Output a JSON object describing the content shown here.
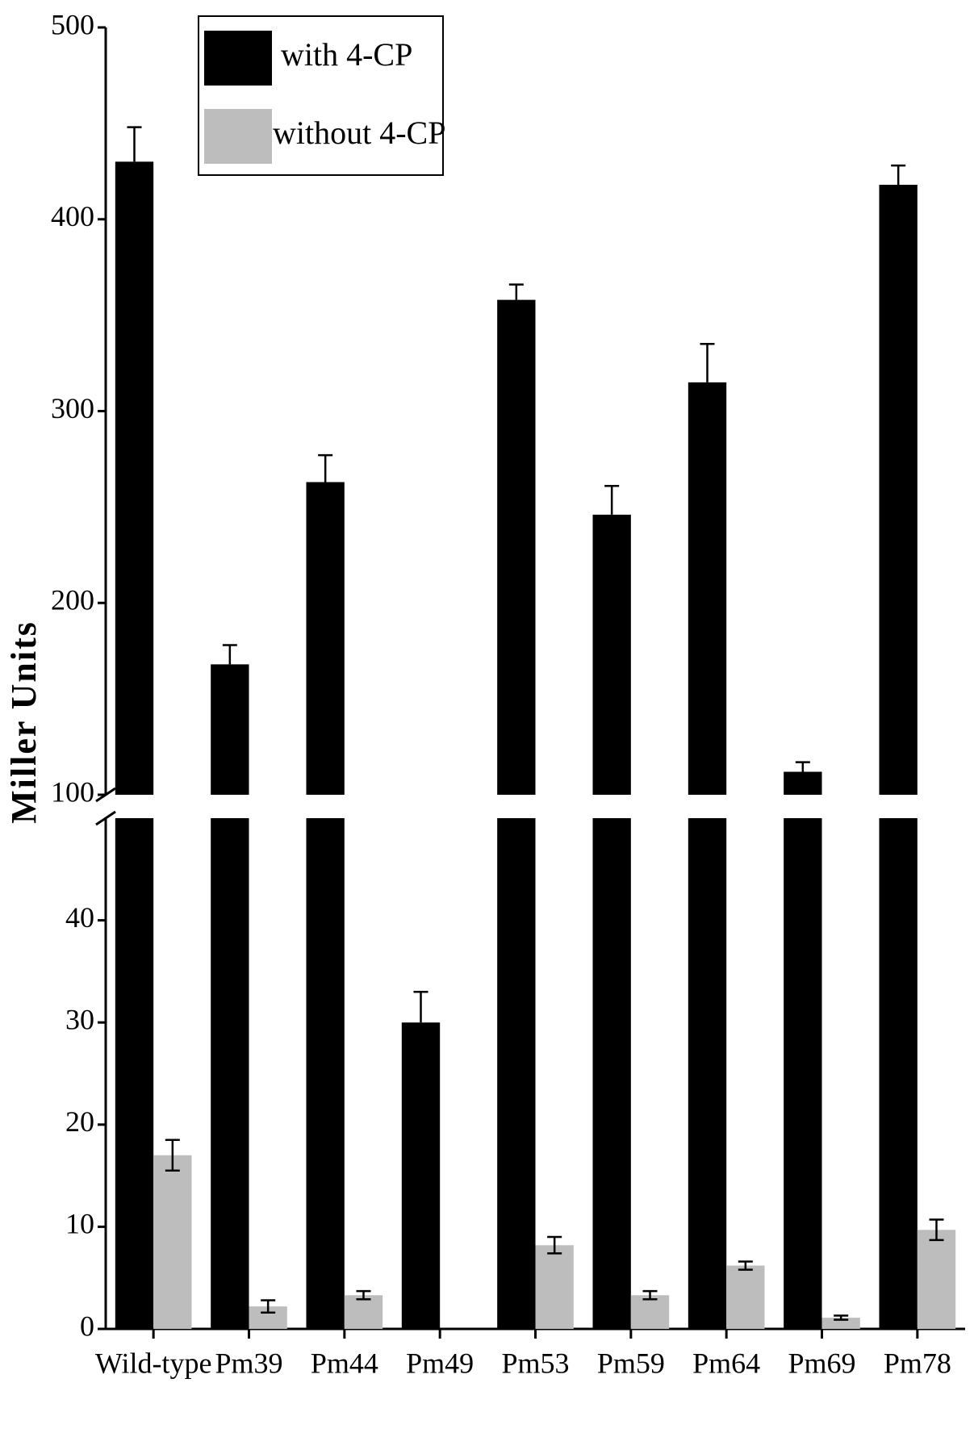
{
  "chart_data": {
    "type": "bar",
    "ylabel": "Miller Units",
    "categories": [
      "Wild-type",
      "Pm39",
      "Pm44",
      "Pm49",
      "Pm53",
      "Pm59",
      "Pm64",
      "Pm69",
      "Pm78"
    ],
    "series": [
      {
        "name": "with 4-CP",
        "color": "#000000",
        "values": [
          430,
          168,
          263,
          30,
          358,
          246,
          315,
          112,
          418
        ],
        "errors": [
          18,
          10,
          14,
          3,
          8,
          15,
          20,
          5,
          10
        ]
      },
      {
        "name": "without 4-CP",
        "color": "#bdbdbd",
        "values": [
          17,
          2.2,
          3.3,
          null,
          8.2,
          3.3,
          6.2,
          1.1,
          9.7
        ],
        "errors": [
          1.5,
          0.6,
          0.4,
          null,
          0.8,
          0.4,
          0.4,
          0.2,
          1
        ]
      }
    ],
    "ylim": [
      0,
      500
    ],
    "ybreak": [
      50,
      100
    ],
    "yticks": [
      0,
      10,
      20,
      30,
      40,
      100,
      200,
      300,
      400,
      500
    ],
    "legend": "upper left"
  }
}
